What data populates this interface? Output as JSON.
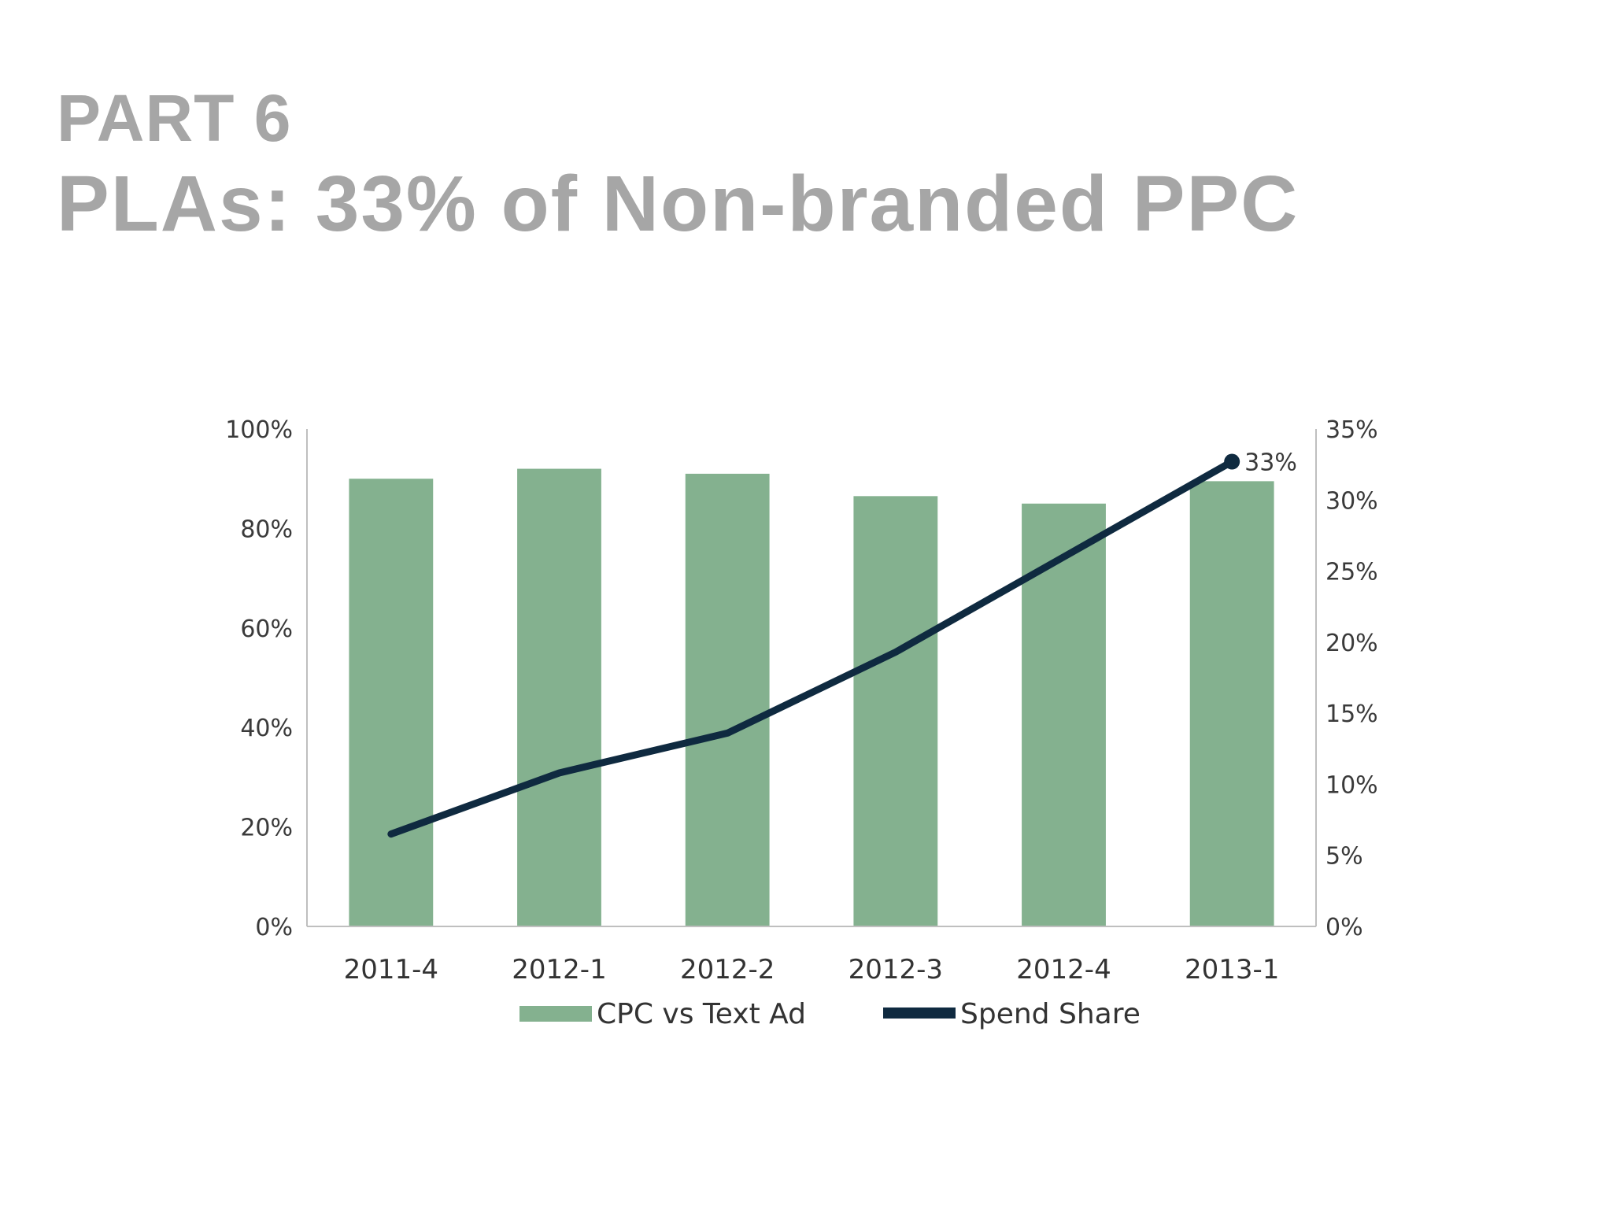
{
  "slide": {
    "title_line1": "PART 6",
    "title_line2": "PLAs: 33% of Non-branded PPC"
  },
  "chart_data": {
    "type": "bar",
    "categories": [
      "2011-4",
      "2012-1",
      "2012-2",
      "2012-3",
      "2012-4",
      "2013-1"
    ],
    "series": [
      {
        "name": "CPC vs Text Ad",
        "type": "bar",
        "axis": "left",
        "color": "#84b18f",
        "values": [
          0.9,
          0.92,
          0.91,
          0.865,
          0.85,
          0.895
        ]
      },
      {
        "name": "Spend Share",
        "type": "line",
        "axis": "right",
        "color": "#0f2a40",
        "values": [
          0.065,
          0.108,
          0.136,
          0.193,
          0.26,
          0.327
        ]
      }
    ],
    "annotations": [
      {
        "series": "Spend Share",
        "category": "2013-1",
        "text": "33%"
      }
    ],
    "ylim_left": [
      0,
      1
    ],
    "yticks_left": [
      "0%",
      "20%",
      "40%",
      "60%",
      "80%",
      "100%"
    ],
    "ylim_right": [
      0,
      0.35
    ],
    "yticks_right": [
      "0%",
      "5%",
      "10%",
      "15%",
      "20%",
      "25%",
      "30%",
      "35%"
    ],
    "xlabel": "",
    "ylabel": "",
    "grid": false,
    "legend_position": "bottom"
  }
}
